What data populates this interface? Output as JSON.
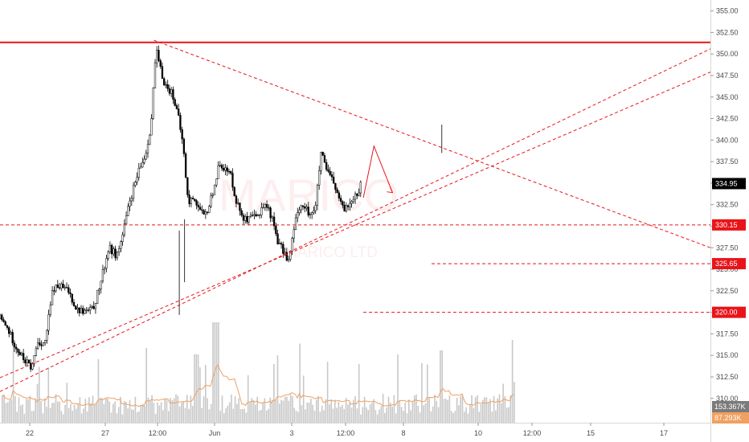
{
  "chart_data": {
    "type": "candlestick",
    "symbol_watermark": "MARICO",
    "watermark_subtitle": "MARICO LTD",
    "y_axis": {
      "ticks": [
        "355.00",
        "352.50",
        "350.00",
        "347.50",
        "345.00",
        "342.50",
        "340.00",
        "337.50",
        "335.00",
        "332.50",
        "330.00",
        "327.50",
        "325.00",
        "322.50",
        "320.00",
        "317.50",
        "315.00",
        "312.50",
        "310.00"
      ],
      "ylim": [
        309.4,
        356.3
      ]
    },
    "x_axis": {
      "ticks": [
        "22",
        "27",
        "12:00",
        "Jun",
        "3",
        "12:00",
        "8",
        "10",
        "12:00",
        "15",
        "17"
      ]
    },
    "price_tags": [
      {
        "label": "334.95",
        "value": 334.95,
        "color": "#000000"
      },
      {
        "label": "330.15",
        "value": 330.15,
        "color": "#e8141a"
      },
      {
        "label": "325.65",
        "value": 325.65,
        "color": "#e8141a"
      },
      {
        "label": "320.00",
        "value": 320.0,
        "color": "#e8141a"
      }
    ],
    "volume_tags": [
      {
        "label": "153.367K",
        "color": "#7b7b7b"
      },
      {
        "label": "87.293K",
        "color": "#f0a060"
      }
    ],
    "levels": [
      {
        "value": 351.35,
        "style": "solid"
      },
      {
        "value": 330.15,
        "style": "dashed"
      },
      {
        "value": 325.65,
        "style": "dashed"
      },
      {
        "value": 320.0,
        "style": "dashed"
      }
    ],
    "trendlines": [
      {
        "from": [
          0,
          310.8
        ],
        "to": [
          100,
          350.6
        ]
      },
      {
        "from": [
          0,
          312.4
        ],
        "to": [
          100,
          347.9
        ]
      },
      {
        "from": [
          29,
          351.6
        ],
        "to": [
          100,
          327.5
        ]
      }
    ],
    "projection": [
      [
        68.5,
        333.3
      ],
      [
        70.5,
        339.3
      ],
      [
        74,
        333.9
      ]
    ],
    "price_path": [
      [
        0,
        319.3
      ],
      [
        1.5,
        318.0
      ],
      [
        3,
        316.0
      ],
      [
        4.5,
        314.5
      ],
      [
        6,
        313.5
      ],
      [
        7,
        316.5
      ],
      [
        8.5,
        316.5
      ],
      [
        10,
        322.8
      ],
      [
        11.5,
        323.0
      ],
      [
        13,
        322.4
      ],
      [
        14.5,
        320.3
      ],
      [
        16,
        320.1
      ],
      [
        17.5,
        320.3
      ],
      [
        19,
        323.5
      ],
      [
        20.5,
        327.5
      ],
      [
        22,
        326.6
      ],
      [
        23,
        328.6
      ],
      [
        24.5,
        333.0
      ],
      [
        26,
        336.0
      ],
      [
        27.5,
        338.5
      ],
      [
        28.5,
        342.0
      ],
      [
        29.4,
        350.5
      ],
      [
        30.5,
        347.5
      ],
      [
        31.5,
        346.0
      ],
      [
        32.5,
        345.5
      ],
      [
        33.5,
        343.0
      ],
      [
        34.5,
        339.5
      ],
      [
        35.5,
        332.5
      ],
      [
        36.5,
        333.5
      ],
      [
        37.5,
        332.0
      ],
      [
        38.5,
        331.0
      ],
      [
        39.5,
        332.5
      ],
      [
        40.5,
        335.0
      ],
      [
        41.5,
        337.5
      ],
      [
        42.5,
        336.5
      ],
      [
        43.5,
        336.0
      ],
      [
        44.5,
        333.0
      ],
      [
        45.5,
        331.5
      ],
      [
        46.5,
        330.5
      ],
      [
        47.5,
        331.0
      ],
      [
        48.5,
        331.0
      ],
      [
        49.5,
        332.5
      ],
      [
        50.5,
        332.2
      ],
      [
        51.5,
        330.5
      ],
      [
        52.5,
        328.0
      ],
      [
        53.5,
        327.0
      ],
      [
        54.5,
        326.0
      ],
      [
        55.5,
        330.0
      ],
      [
        56.5,
        332.5
      ],
      [
        57.5,
        332.0
      ],
      [
        58.5,
        331.5
      ],
      [
        59.5,
        332.3
      ],
      [
        60.5,
        338.5
      ],
      [
        61.5,
        336.5
      ],
      [
        62.5,
        335.5
      ],
      [
        63.5,
        334.0
      ],
      [
        64.5,
        332.0
      ],
      [
        65.5,
        332.2
      ],
      [
        66.5,
        333.5
      ],
      [
        67.5,
        334.0
      ],
      [
        68.2,
        334.95
      ]
    ]
  }
}
